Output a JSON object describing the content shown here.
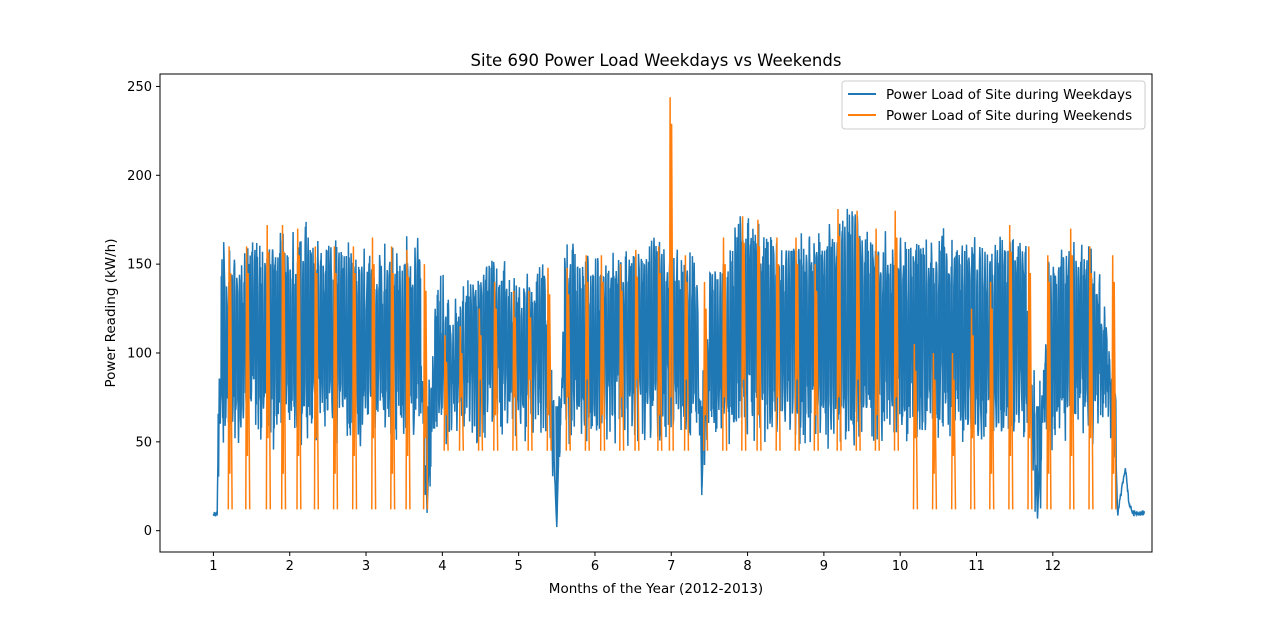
{
  "chart_data": {
    "type": "line",
    "title": "Site 690 Power Load Weekdays vs Weekends",
    "xlabel": "Months of the Year (2012-2013)",
    "ylabel": "Power Reading (kW/h)",
    "xlim": [
      0.3,
      13.3
    ],
    "ylim": [
      -12,
      257
    ],
    "x_ticks": [
      1,
      2,
      3,
      4,
      5,
      6,
      7,
      8,
      9,
      10,
      11,
      12
    ],
    "x_tick_labels": [
      "1",
      "2",
      "3",
      "4",
      "5",
      "6",
      "7",
      "8",
      "9",
      "10",
      "11",
      "12"
    ],
    "y_ticks": [
      0,
      50,
      100,
      150,
      200,
      250
    ],
    "y_tick_labels": [
      "0",
      "50",
      "100",
      "150",
      "200",
      "250"
    ],
    "legend_position": "upper right",
    "grid": false,
    "series": [
      {
        "name": "Power Load of Site during Weekdays",
        "color": "#1f77b4",
        "shape": "dense daily oscillation",
        "points": [
          [
            1.0,
            9
          ],
          [
            1.05,
            9
          ],
          [
            1.08,
            112
          ],
          [
            1.1,
            170
          ],
          [
            1.3,
            160
          ],
          [
            1.45,
            165
          ],
          [
            1.65,
            163
          ],
          [
            1.8,
            178
          ],
          [
            2.0,
            170
          ],
          [
            2.15,
            176
          ],
          [
            2.35,
            170
          ],
          [
            2.5,
            173
          ],
          [
            2.7,
            168
          ],
          [
            2.95,
            163
          ],
          [
            3.1,
            162
          ],
          [
            3.3,
            162
          ],
          [
            3.5,
            168
          ],
          [
            3.7,
            170
          ],
          [
            3.8,
            10
          ],
          [
            3.9,
            145
          ],
          [
            4.0,
            148
          ],
          [
            4.1,
            135
          ],
          [
            4.3,
            140
          ],
          [
            4.4,
            160
          ],
          [
            4.55,
            162
          ],
          [
            4.75,
            163
          ],
          [
            5.0,
            152
          ],
          [
            5.2,
            155
          ],
          [
            5.35,
            160
          ],
          [
            5.5,
            2
          ],
          [
            5.6,
            165
          ],
          [
            5.8,
            162
          ],
          [
            6.0,
            163
          ],
          [
            6.2,
            160
          ],
          [
            6.4,
            165
          ],
          [
            6.6,
            172
          ],
          [
            6.75,
            177
          ],
          [
            6.9,
            165
          ],
          [
            7.05,
            165
          ],
          [
            7.2,
            166
          ],
          [
            7.35,
            155
          ],
          [
            7.4,
            20
          ],
          [
            7.5,
            155
          ],
          [
            7.7,
            155
          ],
          [
            7.85,
            182
          ],
          [
            8.05,
            180
          ],
          [
            8.25,
            175
          ],
          [
            8.4,
            172
          ],
          [
            8.6,
            175
          ],
          [
            8.8,
            170
          ],
          [
            9.0,
            178
          ],
          [
            9.2,
            185
          ],
          [
            9.4,
            188
          ],
          [
            9.55,
            175
          ],
          [
            9.75,
            170
          ],
          [
            9.95,
            175
          ],
          [
            10.1,
            165
          ],
          [
            10.3,
            172
          ],
          [
            10.5,
            170
          ],
          [
            10.7,
            172
          ],
          [
            10.9,
            172
          ],
          [
            11.1,
            170
          ],
          [
            11.3,
            172
          ],
          [
            11.5,
            176
          ],
          [
            11.65,
            170
          ],
          [
            11.8,
            8
          ],
          [
            11.95,
            165
          ],
          [
            12.1,
            170
          ],
          [
            12.3,
            168
          ],
          [
            12.5,
            170
          ],
          [
            12.65,
            140
          ],
          [
            12.78,
            110
          ],
          [
            12.85,
            9
          ],
          [
            12.95,
            36
          ],
          [
            13.0,
            15
          ],
          [
            13.05,
            10
          ],
          [
            13.2,
            10
          ]
        ]
      },
      {
        "name": "Power Load of Site during Weekends",
        "color": "#ff7f0e",
        "shape": "weekend blocks",
        "points": [
          [
            1.22,
            160
          ],
          [
            1.45,
            160
          ],
          [
            1.72,
            172
          ],
          [
            1.92,
            172
          ],
          [
            2.12,
            170
          ],
          [
            2.35,
            160
          ],
          [
            2.6,
            160
          ],
          [
            2.85,
            160
          ],
          [
            3.1,
            165
          ],
          [
            3.35,
            160
          ],
          [
            3.55,
            158
          ],
          [
            3.78,
            150
          ],
          [
            4.05,
            110
          ],
          [
            4.25,
            115
          ],
          [
            4.5,
            125
          ],
          [
            4.7,
            140
          ],
          [
            4.95,
            135
          ],
          [
            5.15,
            135
          ],
          [
            5.4,
            148
          ],
          [
            5.65,
            148
          ],
          [
            5.9,
            155
          ],
          [
            6.1,
            155
          ],
          [
            6.35,
            150
          ],
          [
            6.55,
            158
          ],
          [
            6.85,
            160
          ],
          [
            7.0,
            244
          ],
          [
            7.2,
            155
          ],
          [
            7.45,
            140
          ],
          [
            7.7,
            165
          ],
          [
            7.95,
            177
          ],
          [
            8.15,
            175
          ],
          [
            8.4,
            165
          ],
          [
            8.65,
            165
          ],
          [
            8.9,
            150
          ],
          [
            9.2,
            181
          ],
          [
            9.45,
            180
          ],
          [
            9.7,
            170
          ],
          [
            9.95,
            180
          ],
          [
            10.2,
            105
          ],
          [
            10.45,
            100
          ],
          [
            10.7,
            100
          ],
          [
            10.95,
            125
          ],
          [
            11.2,
            140
          ],
          [
            11.45,
            172
          ],
          [
            11.7,
            160
          ],
          [
            11.95,
            155
          ],
          [
            12.25,
            170
          ],
          [
            12.5,
            160
          ],
          [
            12.8,
            155
          ]
        ]
      }
    ]
  }
}
